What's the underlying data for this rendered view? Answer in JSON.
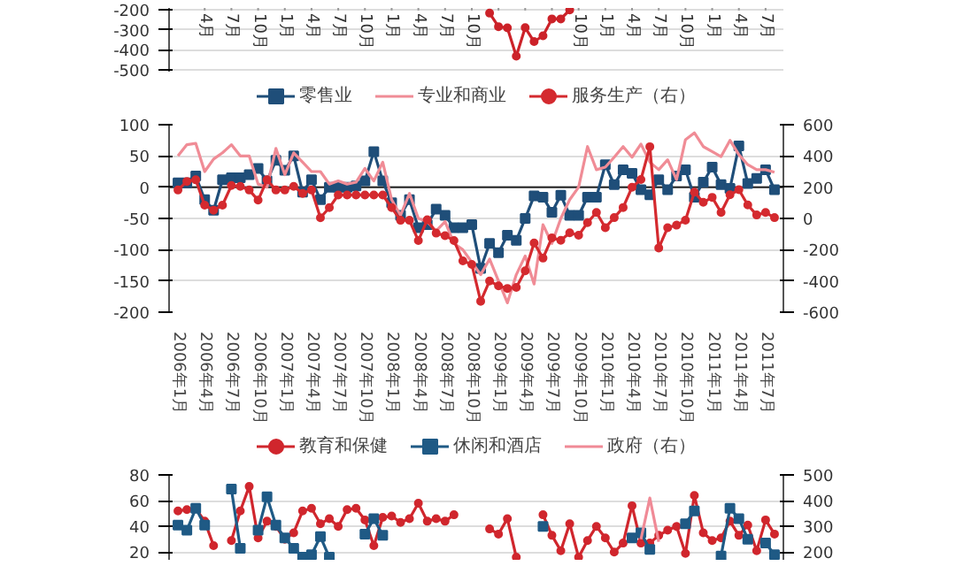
{
  "chart_data": [
    {
      "type": "line",
      "ylim": [
        -510,
        -190
      ],
      "yticks": [
        -200,
        -300,
        -400,
        -500
      ],
      "grid": "y",
      "xlim": [
        "2005-12",
        "2011-09"
      ],
      "xticks": [
        {
          "value": "2006-04",
          "label": "4月"
        },
        {
          "value": "2006-07",
          "label": "7月"
        },
        {
          "value": "2006-10",
          "label": "10月"
        },
        {
          "value": "2007-01",
          "label": "1月"
        },
        {
          "value": "2007-04",
          "label": "4月"
        },
        {
          "value": "2007-07",
          "label": "7月"
        },
        {
          "value": "2007-10",
          "label": "10月"
        },
        {
          "value": "2008-01",
          "label": "1月"
        },
        {
          "value": "2008-04",
          "label": "4月"
        },
        {
          "value": "2008-07",
          "label": "7月"
        },
        {
          "value": "2008-10",
          "label": "10月"
        },
        {
          "value": "2009-01",
          "label": null
        },
        {
          "value": "2009-04",
          "label": null
        },
        {
          "value": "2009-07",
          "label": null
        },
        {
          "value": "2009-10",
          "label": "10月"
        },
        {
          "value": "2010-01",
          "label": "1月"
        },
        {
          "value": "2010-04",
          "label": "4月"
        },
        {
          "value": "2010-07",
          "label": "7月"
        },
        {
          "value": "2010-10",
          "label": "10月"
        },
        {
          "value": "2011-01",
          "label": "1月"
        },
        {
          "value": "2011-04",
          "label": "4月"
        },
        {
          "value": "2011-07",
          "label": "7月"
        }
      ],
      "series": [
        {
          "color": "#cc2229",
          "marker": "circle",
          "x": [
            "2008-12",
            "2009-01",
            "2009-02",
            "2009-03",
            "2009-04",
            "2009-05",
            "2009-06",
            "2009-07",
            "2009-08",
            "2009-09"
          ],
          "values": [
            -216,
            -284,
            -290,
            -432,
            -289,
            -359,
            -330,
            -245,
            -245,
            -200
          ]
        }
      ]
    },
    {
      "type": "line",
      "xlim": [
        "2005-12",
        "2011-09"
      ],
      "ylim": [
        -200,
        100
      ],
      "yticks": [
        -200,
        -150,
        -100,
        -50,
        0,
        50,
        100
      ],
      "y2lim": [
        -600,
        600
      ],
      "y2ticks": [
        -600,
        -400,
        -200,
        0,
        200,
        400,
        600
      ],
      "grid": "y",
      "legend": "top",
      "xticks": [
        {
          "value": "2006-01",
          "label": "2006年1月"
        },
        {
          "value": "2006-04",
          "label": "2006年4月"
        },
        {
          "value": "2006-07",
          "label": "2006年7月"
        },
        {
          "value": "2006-10",
          "label": "2006年10月"
        },
        {
          "value": "2007-01",
          "label": "2007年1月"
        },
        {
          "value": "2007-04",
          "label": "2007年4月"
        },
        {
          "value": "2007-07",
          "label": "2007年7月"
        },
        {
          "value": "2007-10",
          "label": "2007年10月"
        },
        {
          "value": "2008-01",
          "label": "2008年1月"
        },
        {
          "value": "2008-04",
          "label": "2008年4月"
        },
        {
          "value": "2008-07",
          "label": "2008年7月"
        },
        {
          "value": "2008-10",
          "label": "2008年10月"
        },
        {
          "value": "2009-01",
          "label": "2009年1月"
        },
        {
          "value": "2009-04",
          "label": "2009年4月"
        },
        {
          "value": "2009-07",
          "label": "2009年7月"
        },
        {
          "value": "2009-10",
          "label": "2009年10月"
        },
        {
          "value": "2010-01",
          "label": "2010年1月"
        },
        {
          "value": "2010-04",
          "label": "2010年4月"
        },
        {
          "value": "2010-07",
          "label": "2010年7月"
        },
        {
          "value": "2010-10",
          "label": "2010年10月"
        },
        {
          "value": "2011-01",
          "label": "2011年1月"
        },
        {
          "value": "2011-04",
          "label": "2011年4月"
        },
        {
          "value": "2011-07",
          "label": "2011年7月"
        }
      ],
      "x": [
        "2006-01",
        "2006-02",
        "2006-03",
        "2006-04",
        "2006-05",
        "2006-06",
        "2006-07",
        "2006-08",
        "2006-09",
        "2006-10",
        "2006-11",
        "2006-12",
        "2007-01",
        "2007-02",
        "2007-03",
        "2007-04",
        "2007-05",
        "2007-06",
        "2007-07",
        "2007-08",
        "2007-09",
        "2007-10",
        "2007-11",
        "2007-12",
        "2008-01",
        "2008-02",
        "2008-03",
        "2008-04",
        "2008-05",
        "2008-06",
        "2008-07",
        "2008-08",
        "2008-09",
        "2008-10",
        "2008-11",
        "2008-12",
        "2009-01",
        "2009-02",
        "2009-03",
        "2009-04",
        "2009-05",
        "2009-06",
        "2009-07",
        "2009-08",
        "2009-09",
        "2009-10",
        "2009-11",
        "2009-12",
        "2010-01",
        "2010-02",
        "2010-03",
        "2010-04",
        "2010-05",
        "2010-06",
        "2010-07",
        "2010-08",
        "2010-09",
        "2010-10",
        "2010-11",
        "2010-12",
        "2011-01",
        "2011-02",
        "2011-03",
        "2011-04",
        "2011-05",
        "2011-06",
        "2011-07",
        "2011-08"
      ],
      "series": [
        {
          "name": "零售业",
          "color": "#1f4e79",
          "marker": "square",
          "values": [
            7,
            7,
            18,
            -20,
            -37,
            12,
            15,
            15,
            20,
            30,
            10,
            43,
            27,
            50,
            -8,
            12,
            -20,
            0,
            0,
            0,
            2,
            10,
            57,
            10,
            -25,
            -45,
            -20,
            -65,
            -60,
            -35,
            -45,
            -65,
            -65,
            -60,
            -130,
            -90,
            -105,
            -77,
            -85,
            -50,
            -14,
            -16,
            -40,
            -13,
            -45,
            -45,
            -16,
            -16,
            36,
            4,
            28,
            22,
            -4,
            -12,
            12,
            -4,
            18,
            28,
            -16,
            8,
            32,
            4,
            -2,
            66,
            6,
            14,
            28,
            -4
          ]
        },
        {
          "name": "专业和商业",
          "color": "#f08c96",
          "marker": "none",
          "values": [
            50,
            68,
            70,
            25,
            45,
            55,
            68,
            50,
            50,
            5,
            0,
            62,
            20,
            55,
            40,
            25,
            25,
            5,
            10,
            5,
            8,
            30,
            10,
            40,
            -20,
            -45,
            -10,
            -50,
            -55,
            -70,
            -55,
            -90,
            -100,
            -120,
            -140,
            -115,
            -150,
            -185,
            -140,
            -110,
            -155,
            -60,
            -90,
            -50,
            -20,
            0,
            65,
            28,
            32,
            48,
            65,
            48,
            69,
            40,
            28,
            44,
            12,
            76,
            87,
            65,
            57,
            49,
            75,
            52,
            36,
            28,
            28,
            24
          ]
        },
        {
          "name": "服务生产（右）",
          "color": "#d42a2f",
          "marker": "circle",
          "axis": "y2",
          "values": [
            182,
            237,
            247,
            85,
            53,
            85,
            211,
            205,
            182,
            117,
            247,
            182,
            182,
            205,
            160,
            182,
            4,
            69,
            150,
            150,
            150,
            150,
            150,
            150,
            69,
            -12,
            -12,
            -142,
            -8,
            -94,
            -110,
            -142,
            -272,
            -294,
            -530,
            -400,
            -432,
            -448,
            -442,
            -335,
            -157,
            -254,
            -124,
            -140,
            -92,
            -108,
            -27,
            38,
            -59,
            5,
            70,
            200,
            249,
            459,
            -189,
            -59,
            -43,
            -11,
            168,
            103,
            135,
            38,
            151,
            184,
            86,
            22,
            38,
            5
          ]
        }
      ]
    },
    {
      "type": "line",
      "xlim": [
        "2005-12",
        "2011-09"
      ],
      "ylim": [
        14,
        80
      ],
      "yticks": [
        20,
        40,
        60,
        80
      ],
      "y2lim": [
        170,
        500
      ],
      "y2ticks": [
        200,
        300,
        400,
        500
      ],
      "grid": "y",
      "legend": "top",
      "tick_labels": "y",
      "x": [
        "2006-01",
        "2006-02",
        "2006-03",
        "2006-04",
        "2006-05",
        "2006-06",
        "2006-07",
        "2006-08",
        "2006-09",
        "2006-10",
        "2006-11",
        "2006-12",
        "2007-01",
        "2007-02",
        "2007-03",
        "2007-04",
        "2007-05",
        "2007-06",
        "2007-07",
        "2007-08",
        "2007-09",
        "2007-10",
        "2007-11",
        "2007-12",
        "2008-01",
        "2008-02",
        "2008-03",
        "2008-04",
        "2008-05",
        "2008-06",
        "2008-07",
        "2008-08",
        "2008-09",
        "2008-10",
        "2008-11",
        "2008-12",
        "2009-01",
        "2009-02",
        "2009-03",
        "2009-04",
        "2009-05",
        "2009-06",
        "2009-07",
        "2009-08",
        "2009-09",
        "2009-10",
        "2009-11",
        "2009-12",
        "2010-01",
        "2010-02",
        "2010-03",
        "2010-04",
        "2010-05",
        "2010-06",
        "2010-07",
        "2010-08",
        "2010-09",
        "2010-10",
        "2010-11",
        "2010-12",
        "2011-01",
        "2011-02",
        "2011-03",
        "2011-04",
        "2011-05",
        "2011-06",
        "2011-07",
        "2011-08"
      ],
      "series": [
        {
          "name": "教育和保健",
          "color": "#d0262d",
          "marker": "circle",
          "values": [
            52,
            53,
            54,
            44,
            25,
            null,
            29,
            52,
            71,
            31,
            44,
            40,
            30,
            35,
            52,
            54,
            42,
            46,
            40,
            53,
            54,
            45,
            25,
            47,
            48,
            43,
            46,
            58,
            44,
            46,
            44,
            49,
            null,
            null,
            null,
            38,
            34,
            46,
            16,
            null,
            null,
            49,
            33,
            21,
            42,
            16,
            29,
            40,
            31,
            20,
            27,
            56,
            27,
            27,
            33,
            37,
            40,
            19,
            64,
            35,
            29,
            31,
            44,
            33,
            41,
            21,
            45,
            34
          ]
        },
        {
          "name": "休闲和酒店",
          "color": "#1f5a85",
          "marker": "square",
          "values": [
            41,
            37,
            54,
            41,
            null,
            null,
            69,
            23,
            null,
            37,
            63,
            41,
            31,
            23,
            16,
            18,
            32,
            16,
            null,
            null,
            null,
            34,
            46,
            33,
            null,
            null,
            null,
            null,
            null,
            null,
            null,
            null,
            null,
            null,
            null,
            null,
            null,
            null,
            null,
            null,
            null,
            40,
            null,
            null,
            null,
            null,
            null,
            null,
            null,
            null,
            null,
            31,
            35,
            22,
            null,
            null,
            null,
            42,
            52,
            null,
            null,
            17,
            54,
            46,
            30,
            null,
            27,
            18
          ]
        },
        {
          "name": "政府（右）",
          "color": "#f08a96",
          "marker": "none",
          "axis": "y2",
          "values": [
            null,
            null,
            null,
            null,
            null,
            null,
            null,
            null,
            null,
            null,
            null,
            null,
            null,
            null,
            null,
            null,
            null,
            null,
            null,
            null,
            null,
            null,
            null,
            null,
            null,
            null,
            null,
            null,
            null,
            null,
            null,
            null,
            null,
            null,
            null,
            null,
            null,
            null,
            null,
            null,
            null,
            null,
            null,
            null,
            null,
            null,
            null,
            null,
            null,
            null,
            null,
            null,
            250,
            410,
            240,
            null,
            null,
            null,
            null,
            null,
            null,
            null,
            null,
            null,
            null,
            null,
            null,
            null
          ]
        }
      ]
    }
  ]
}
